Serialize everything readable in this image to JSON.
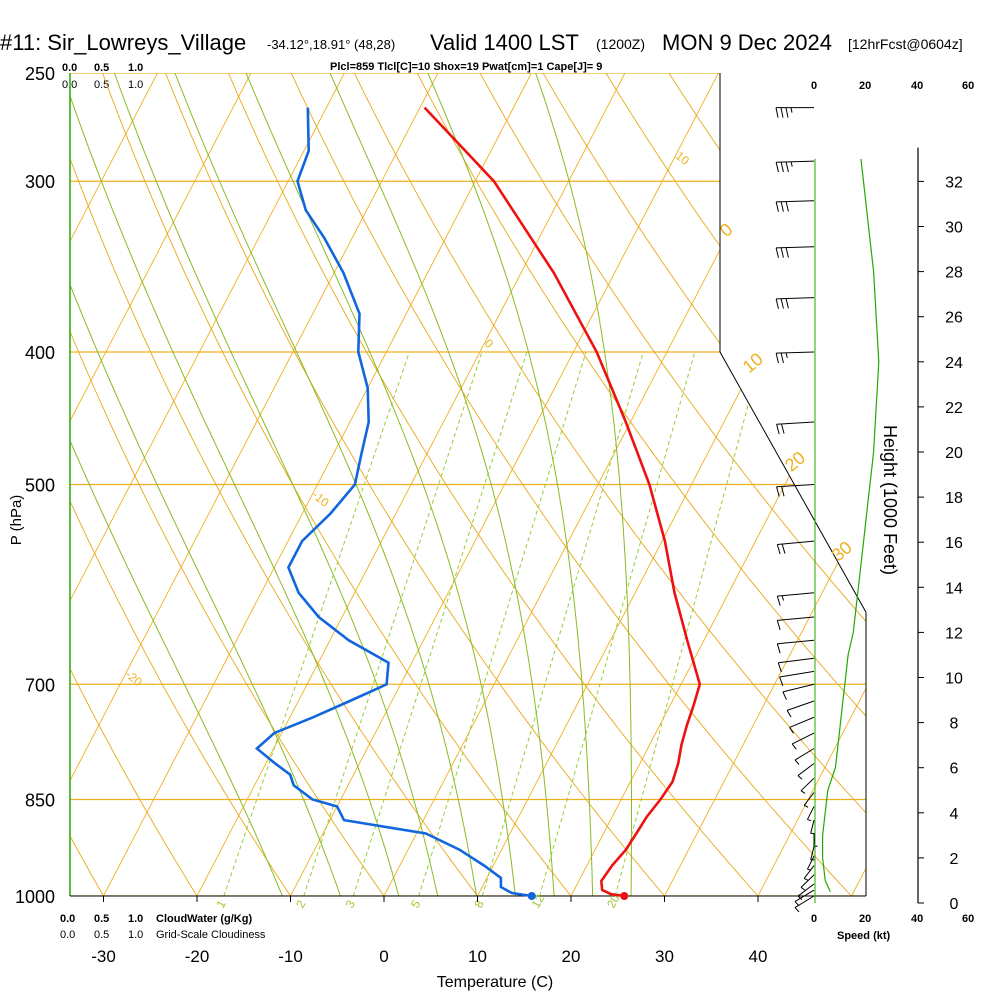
{
  "header": {
    "station": "#11: Sir_Lowreys_Village",
    "coords": "-34.12°,18.91° (48,28)",
    "valid": "Valid 1400 LST",
    "utc": "(1200Z)",
    "date": "MON 9 Dec 2024",
    "forecast": "[12hrFcst@0604z]"
  },
  "indices": "Plcl=859 Tlcl[C]=10 Shox=19 Pwat[cm]=1 Cape[J]= 9",
  "top_scales": {
    "cloud_water_ticks": [
      "0.0",
      "0.5",
      "1.0"
    ],
    "cloudiness_ticks": [
      "0.0",
      "0.5",
      "1.0"
    ],
    "speed_ticks": [
      "0",
      "20",
      "40",
      "60"
    ]
  },
  "bottom_scales": {
    "cloud_water_ticks": [
      "0.0",
      "0.5",
      "1.0"
    ],
    "cloud_water_label": "CloudWater (g/Kg)",
    "cloudiness_ticks": [
      "0.0",
      "0.5",
      "1.0"
    ],
    "cloudiness_label": "Grid-Scale Cloudiness",
    "speed_ticks": [
      "0",
      "20",
      "40",
      "60"
    ],
    "speed_label": "Speed (kt)"
  },
  "colors": {
    "temperature": "#ee1111",
    "dewpoint": "#1166dd",
    "isotherm": "#f0b020",
    "dry_adiabat": "#e8a818",
    "moist_adiabat": "#88bb22",
    "mixing_ratio": "#99cc33",
    "green_text": "#22aa00",
    "indices_text": "#aa0033",
    "wind_speed": "#22aa00"
  },
  "chart_data": {
    "type": "skew-t",
    "xlabel": "Temperature (C)",
    "ylabel": "P (hPa)",
    "right_axis_label": "Height (1000 Feet)",
    "x_ticks": [
      -30,
      -20,
      -10,
      0,
      10,
      20,
      30,
      40
    ],
    "p_ticks": [
      250,
      300,
      400,
      500,
      700,
      850,
      1000
    ],
    "height_ticks": [
      0,
      2,
      4,
      6,
      8,
      10,
      12,
      14,
      16,
      18,
      20,
      22,
      24,
      26,
      28,
      30,
      32
    ],
    "isotherm_labels": [
      {
        "text": "10",
        "temp": -10,
        "p": 288
      },
      {
        "text": "0",
        "temp": -20,
        "p": 395
      },
      {
        "text": "-10",
        "temp": -30,
        "p": 510
      },
      {
        "text": "-20",
        "temp": -40,
        "p": 690
      },
      {
        "text": "-30",
        "temp": -50,
        "p": 890
      },
      {
        "text": "0",
        "temp": 0,
        "p": 330
      },
      {
        "text": "10",
        "temp": 10,
        "p": 415
      },
      {
        "text": "20",
        "temp": 20,
        "p": 490
      },
      {
        "text": "30",
        "temp": 30,
        "p": 570
      }
    ],
    "mixing_ratio_labels": [
      "1",
      "2",
      "3",
      "5",
      "8",
      "12",
      "20"
    ],
    "mixing_ratio_values": [
      1,
      2,
      3,
      5,
      8,
      12,
      20
    ],
    "temperature_profile": {
      "p": [
        1000,
        997,
        990,
        975,
        950,
        925,
        900,
        875,
        850,
        825,
        800,
        775,
        750,
        725,
        700,
        650,
        600,
        550,
        500,
        450,
        400,
        350,
        300,
        265
      ],
      "t": [
        25.7,
        24.2,
        23.0,
        22.4,
        22.7,
        23.3,
        23.5,
        23.7,
        24.2,
        24.5,
        24.1,
        23.4,
        22.9,
        22.5,
        22.0,
        18.2,
        14.2,
        10.3,
        5.5,
        -0.5,
        -7.5,
        -16.5,
        -28.0,
        -39.5
      ]
    },
    "dewpoint_profile": {
      "p": [
        1000,
        995,
        985,
        970,
        950,
        925,
        900,
        880,
        860,
        850,
        830,
        815,
        800,
        780,
        760,
        740,
        720,
        700,
        675,
        650,
        625,
        600,
        575,
        550,
        525,
        500,
        475,
        450,
        425,
        400,
        375,
        350,
        330,
        315,
        300,
        285,
        265
      ],
      "td": [
        15.8,
        13.5,
        12.0,
        11.5,
        9.0,
        5.5,
        1.0,
        -8.5,
        -10.0,
        -13.0,
        -15.8,
        -16.8,
        -19.0,
        -21.8,
        -20.8,
        -17.5,
        -14.5,
        -11.5,
        -12.5,
        -18.0,
        -22.5,
        -26.0,
        -28.5,
        -28.5,
        -27.0,
        -26.0,
        -27.0,
        -28.0,
        -30.0,
        -33.0,
        -35.0,
        -39.0,
        -43.0,
        -46.5,
        -49.0,
        -49.5,
        -52.0
      ]
    },
    "surface_points": {
      "temperature": {
        "p": 1000,
        "t": 25.7
      },
      "dewpoint": {
        "p": 1000,
        "t": 15.8
      }
    },
    "wind_barbs_kt": [
      {
        "p": 1000,
        "speed": 10,
        "dir": 150
      },
      {
        "p": 990,
        "speed": 10,
        "dir": 150
      },
      {
        "p": 980,
        "speed": 10,
        "dir": 155
      },
      {
        "p": 965,
        "speed": 10,
        "dir": 160
      },
      {
        "p": 950,
        "speed": 10,
        "dir": 165
      },
      {
        "p": 935,
        "speed": 10,
        "dir": 170
      },
      {
        "p": 920,
        "speed": 10,
        "dir": 175
      },
      {
        "p": 900,
        "speed": 10,
        "dir": 180
      },
      {
        "p": 880,
        "speed": 10,
        "dir": 185
      },
      {
        "p": 860,
        "speed": 10,
        "dir": 190
      },
      {
        "p": 840,
        "speed": 10,
        "dir": 195
      },
      {
        "p": 820,
        "speed": 10,
        "dir": 200
      },
      {
        "p": 800,
        "speed": 10,
        "dir": 205
      },
      {
        "p": 780,
        "speed": 10,
        "dir": 210
      },
      {
        "p": 760,
        "speed": 10,
        "dir": 215
      },
      {
        "p": 740,
        "speed": 10,
        "dir": 220
      },
      {
        "p": 720,
        "speed": 10,
        "dir": 225
      },
      {
        "p": 700,
        "speed": 10,
        "dir": 235
      },
      {
        "p": 685,
        "speed": 10,
        "dir": 245
      },
      {
        "p": 670,
        "speed": 10,
        "dir": 250
      },
      {
        "p": 650,
        "speed": 10,
        "dir": 255
      },
      {
        "p": 625,
        "speed": 10,
        "dir": 255
      },
      {
        "p": 600,
        "speed": 15,
        "dir": 255
      },
      {
        "p": 550,
        "speed": 20,
        "dir": 255
      },
      {
        "p": 500,
        "speed": 20,
        "dir": 260
      },
      {
        "p": 450,
        "speed": 20,
        "dir": 260
      },
      {
        "p": 400,
        "speed": 25,
        "dir": 265
      },
      {
        "p": 365,
        "speed": 30,
        "dir": 265
      },
      {
        "p": 335,
        "speed": 30,
        "dir": 265
      },
      {
        "p": 310,
        "speed": 30,
        "dir": 265
      },
      {
        "p": 290,
        "speed": 35,
        "dir": 265
      },
      {
        "p": 265,
        "speed": 35,
        "dir": 270
      }
    ],
    "wind_speed_profile": {
      "height_kft": [
        0.5,
        1,
        2,
        3,
        4,
        5,
        6,
        7,
        8,
        9,
        10,
        11,
        12,
        13,
        14,
        15,
        16,
        17,
        18,
        19,
        20,
        22,
        24,
        26,
        28,
        30,
        32,
        33
      ],
      "speed_kt": [
        6,
        4,
        3,
        3,
        4,
        5,
        8,
        9,
        10,
        11,
        12,
        13,
        15,
        16,
        17,
        18,
        19,
        20,
        21,
        22,
        23,
        24,
        25,
        24,
        23,
        21,
        19,
        18
      ]
    },
    "ylim_p": [
      250,
      1000
    ],
    "xlim_surface": [
      -33,
      36
    ]
  }
}
